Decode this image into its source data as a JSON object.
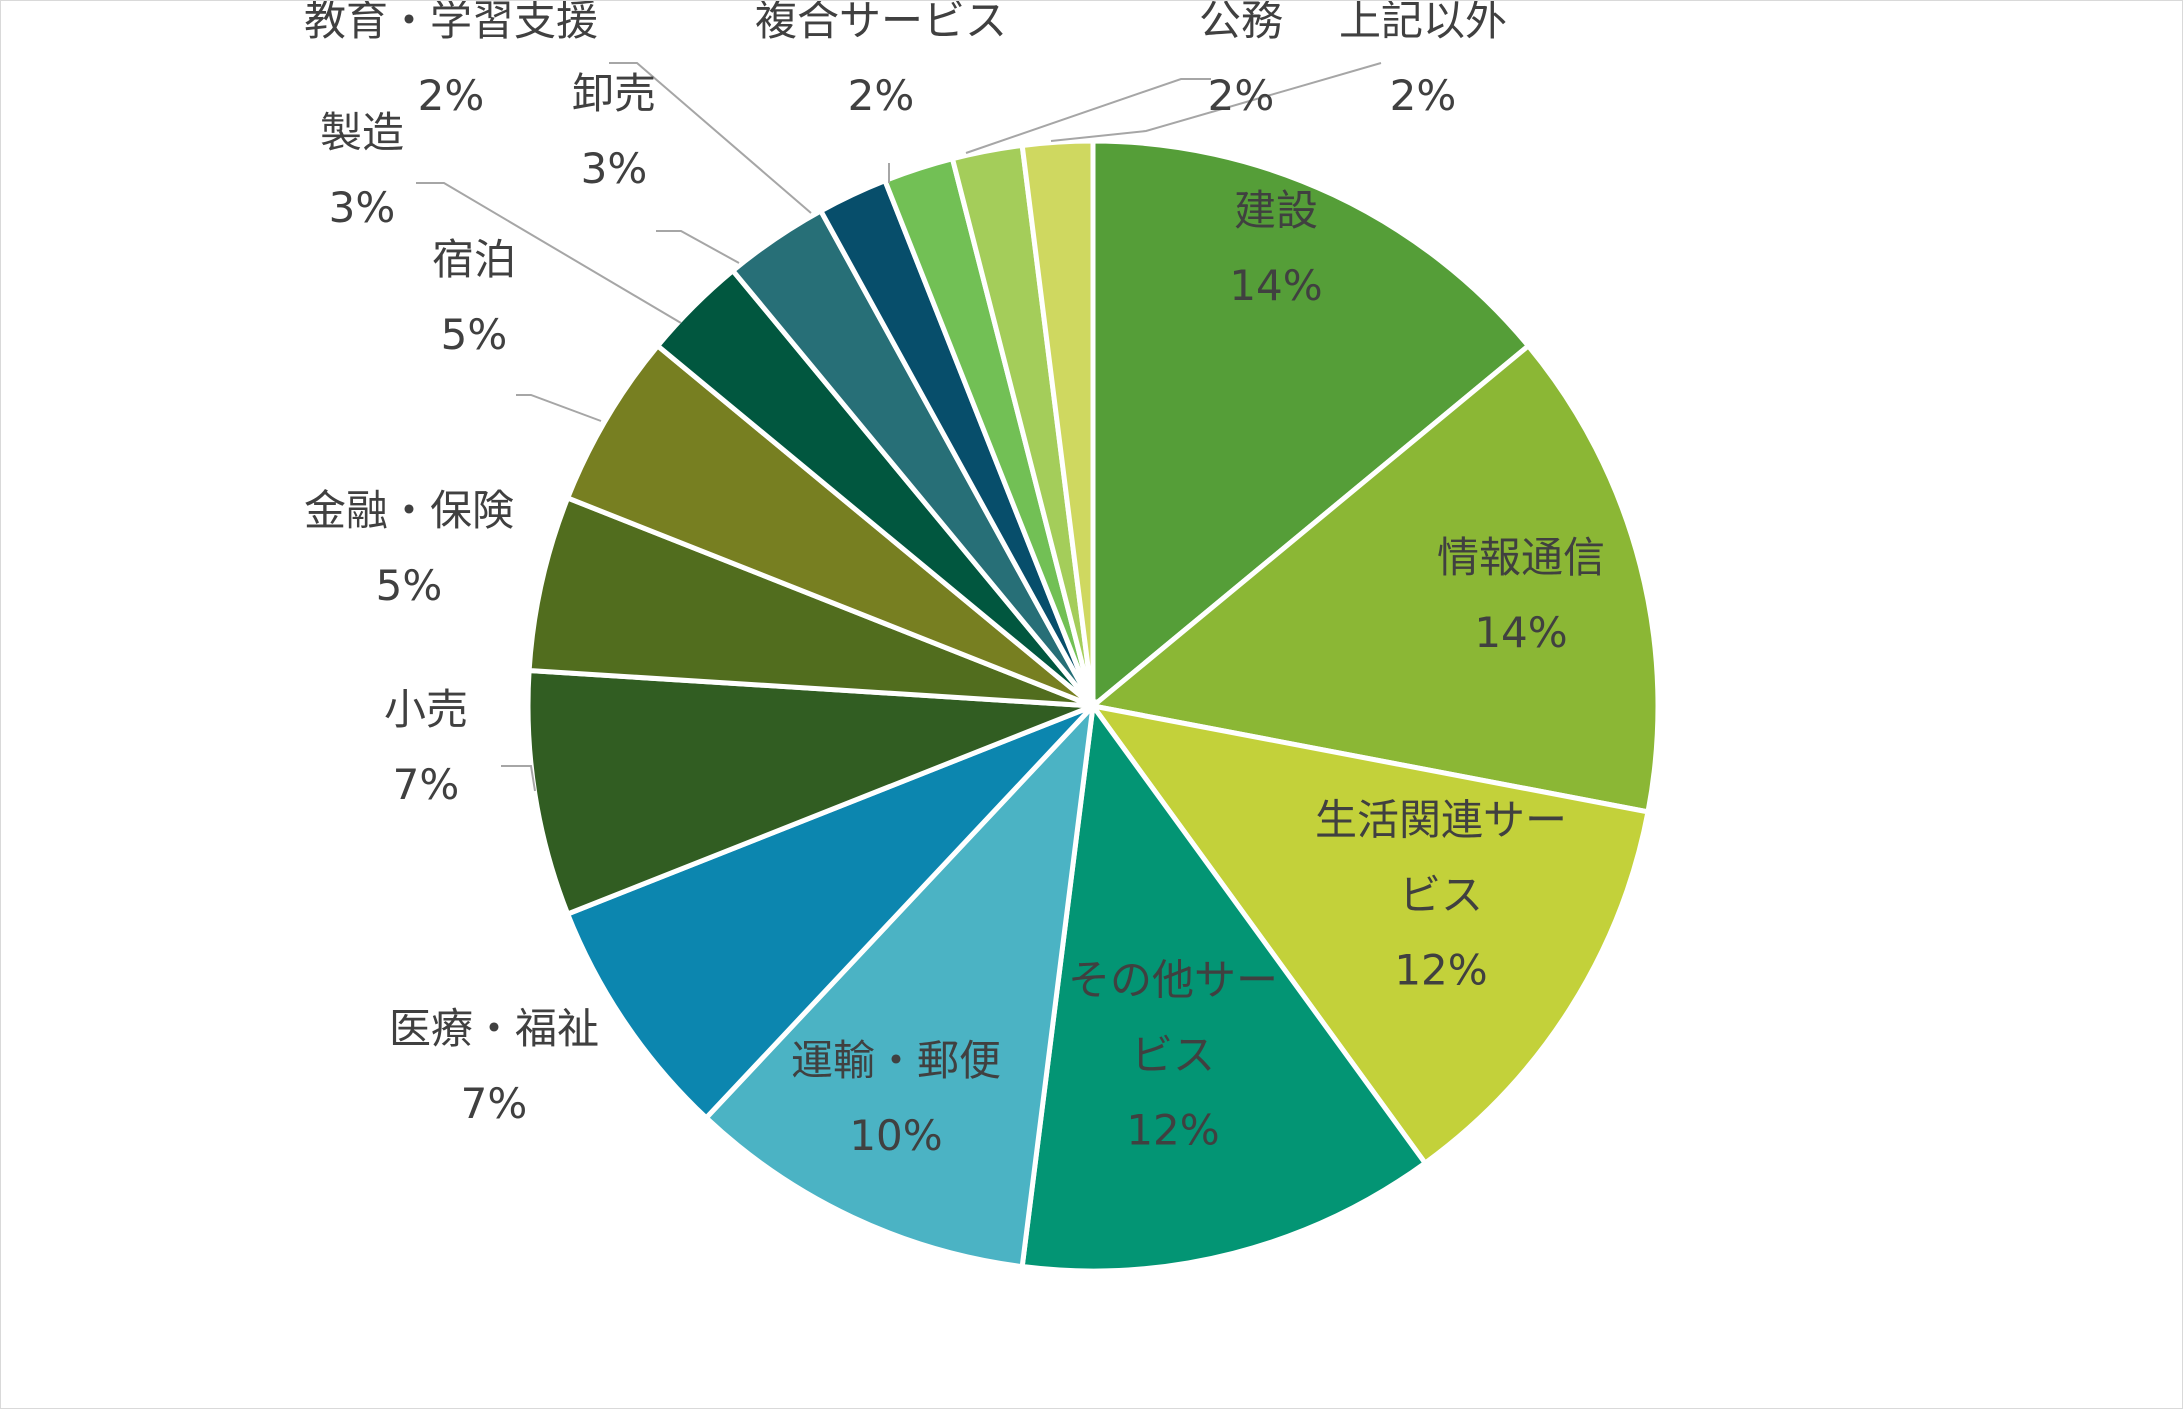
{
  "chart_data": {
    "type": "pie",
    "title": "",
    "slices": [
      {
        "name": "建設",
        "value": 14,
        "label": "14%",
        "color": "#559E38",
        "label_lines": [
          "建設"
        ]
      },
      {
        "name": "情報通信",
        "value": 14,
        "label": "14%",
        "color": "#8BB735",
        "label_lines": [
          "情報通信"
        ]
      },
      {
        "name": "生活関連サービス",
        "value": 12,
        "label": "12%",
        "color": "#C3D13A",
        "label_lines": [
          "生活関連サー",
          "ビス"
        ]
      },
      {
        "name": "その他サービス",
        "value": 12,
        "label": "12%",
        "color": "#039574",
        "label_lines": [
          "その他サー",
          "ビス"
        ]
      },
      {
        "name": "運輸・郵便",
        "value": 10,
        "label": "10%",
        "color": "#4BB3C4",
        "label_lines": [
          "運輸・郵便"
        ]
      },
      {
        "name": "医療・福祉",
        "value": 7,
        "label": "7%",
        "color": "#0C86AF",
        "label_lines": [
          "医療・福祉"
        ]
      },
      {
        "name": "小売",
        "value": 7,
        "label": "7%",
        "color": "#315D22",
        "label_lines": [
          "小売"
        ]
      },
      {
        "name": "金融・保険",
        "value": 5,
        "label": "5%",
        "color": "#516D1E",
        "label_lines": [
          "金融・保険"
        ]
      },
      {
        "name": "宿泊",
        "value": 5,
        "label": "5%",
        "color": "#777F21",
        "label_lines": [
          "宿泊"
        ]
      },
      {
        "name": "製造",
        "value": 3,
        "label": "3%",
        "color": "#01573F",
        "label_lines": [
          "製造"
        ]
      },
      {
        "name": "卸売",
        "value": 3,
        "label": "3%",
        "color": "#276F77",
        "label_lines": [
          "卸売"
        ]
      },
      {
        "name": "教育・学習支援",
        "value": 2,
        "label": "2%",
        "color": "#074E6B",
        "label_lines": [
          "教育・学習支援"
        ]
      },
      {
        "name": "複合サービス",
        "value": 2,
        "label": "2%",
        "color": "#72C055",
        "label_lines": [
          "複合サービス"
        ]
      },
      {
        "name": "公務",
        "value": 2,
        "label": "2%",
        "color": "#A4CD5A",
        "label_lines": [
          "公務"
        ]
      },
      {
        "name": "上記以外",
        "value": 2,
        "label": "2%",
        "color": "#CFD860",
        "label_lines": [
          "上記以外"
        ]
      }
    ]
  }
}
